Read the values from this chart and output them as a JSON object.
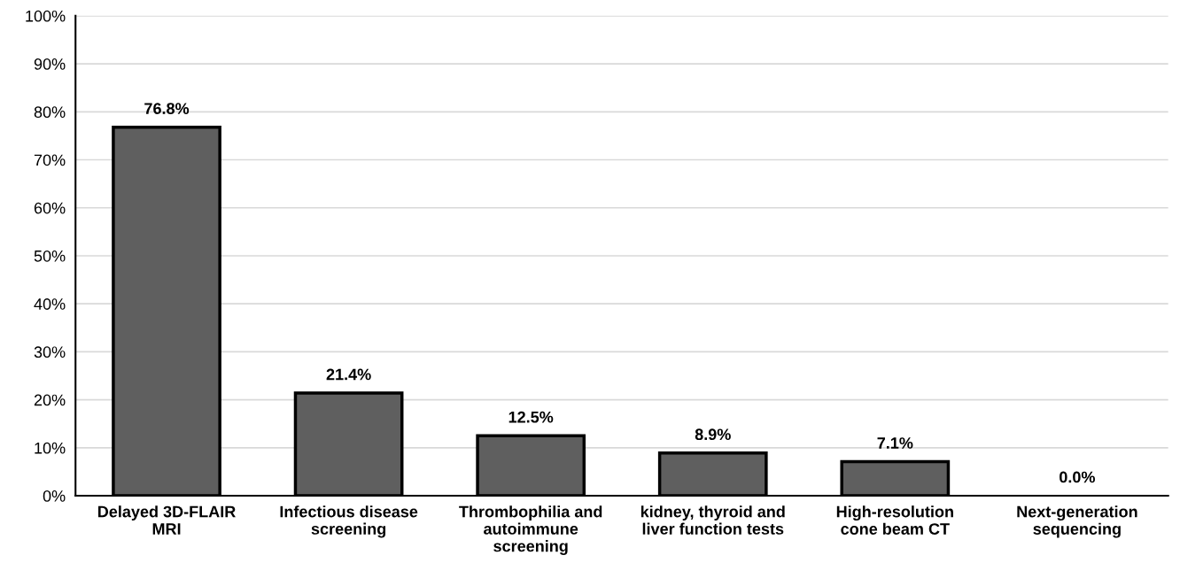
{
  "chart_data": {
    "type": "bar",
    "categories": [
      "Delayed 3D-FLAIR\nMRI",
      "Infectious disease\nscreening",
      "Thrombophilia and\nautoimmune\nscreening",
      "kidney, thyroid and\nliver function tests",
      "High-resolution\ncone beam CT",
      "Next-generation\nsequencing"
    ],
    "values": [
      76.8,
      21.4,
      12.5,
      8.9,
      7.1,
      0.0
    ],
    "value_labels": [
      "76.8%",
      "21.4%",
      "12.5%",
      "8.9%",
      "7.1%",
      "0.0%"
    ],
    "color": "#5f5f5f",
    "ylim": [
      0,
      100
    ],
    "yticks": [
      {
        "value": 0,
        "label": "0%"
      },
      {
        "value": 10,
        "label": "10%"
      },
      {
        "value": 20,
        "label": "20%"
      },
      {
        "value": 30,
        "label": "30%"
      },
      {
        "value": 40,
        "label": "40%"
      },
      {
        "value": 50,
        "label": "50%"
      },
      {
        "value": 60,
        "label": "60%"
      },
      {
        "value": 70,
        "label": "70%"
      },
      {
        "value": 80,
        "label": "80%"
      },
      {
        "value": 90,
        "label": "90%"
      },
      {
        "value": 100,
        "label": "100%"
      }
    ],
    "grid": "y"
  }
}
